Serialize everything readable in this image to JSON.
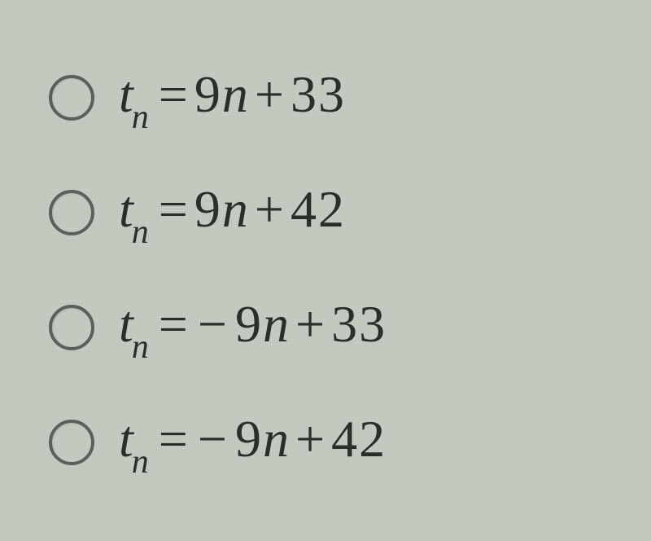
{
  "options": [
    {
      "variable": "t",
      "subscript": "n",
      "equals": "=",
      "coefficient": "9",
      "coeff_var": "n",
      "operator": "+",
      "constant": "33",
      "negative": false
    },
    {
      "variable": "t",
      "subscript": "n",
      "equals": "=",
      "coefficient": "9",
      "coeff_var": "n",
      "operator": "+",
      "constant": "42",
      "negative": false
    },
    {
      "variable": "t",
      "subscript": "n",
      "equals": "=",
      "coefficient": "9",
      "coeff_var": "n",
      "operator": "+",
      "constant": "33",
      "negative": true
    },
    {
      "variable": "t",
      "subscript": "n",
      "equals": "=",
      "coefficient": "9",
      "coeff_var": "n",
      "operator": "+",
      "constant": "42",
      "negative": true
    }
  ],
  "colors": {
    "background": "#c8cfc5",
    "text": "#2a2f28",
    "radio_border": "#5a6158"
  }
}
